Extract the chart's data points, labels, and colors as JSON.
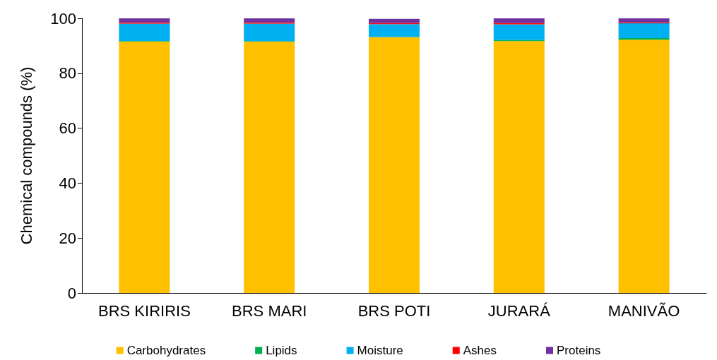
{
  "chart_data": {
    "type": "bar",
    "stacked": true,
    "ylabel": "Chemical compounds (%)",
    "categories": [
      "BRS KIRIRIS",
      "BRS MARI",
      "BRS POTI",
      "JURARÁ",
      "MANIVÃO"
    ],
    "series": [
      {
        "name": "Carbohydrates",
        "color": "#ffc000",
        "values": [
          91.6,
          91.5,
          93.2,
          91.7,
          92.2
        ]
      },
      {
        "name": "Lipids",
        "color": "#00b050",
        "values": [
          0.2,
          0.2,
          null,
          0.4,
          0.6
        ]
      },
      {
        "name": "Moisture",
        "color": "#00b0f0",
        "values": [
          6.3,
          6.4,
          4.7,
          5.7,
          5.4
        ]
      },
      {
        "name": "Ashes",
        "color": "#ff0000",
        "values": [
          0.4,
          0.4,
          0.4,
          0.5,
          0.4
        ]
      },
      {
        "name": "Proteins",
        "color": "#7030a0",
        "values": [
          1.5,
          1.5,
          1.5,
          1.7,
          1.4
        ]
      }
    ],
    "ylim": [
      0,
      100
    ],
    "yticks": [
      0,
      20,
      40,
      60,
      80,
      100
    ],
    "grid": false,
    "legend": "bottom"
  }
}
